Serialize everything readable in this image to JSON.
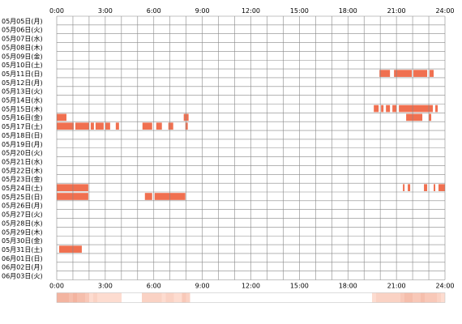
{
  "chart_data": {
    "type": "heatmap",
    "x_ticks": [
      "0:00",
      "3:00",
      "6:00",
      "9:00",
      "12:00",
      "15:00",
      "18:00",
      "21:00",
      "24:00"
    ],
    "x_range_hours": [
      0,
      24
    ],
    "grid": true,
    "colors": {
      "bar": "#f07050",
      "grid": "#888888",
      "density_light": "#ffe6dc",
      "density_dark": "#f3c0b0"
    },
    "rows": [
      {
        "label": "05月05日(月)",
        "segments": []
      },
      {
        "label": "05月06日(火)",
        "segments": []
      },
      {
        "label": "05月07日(水)",
        "segments": []
      },
      {
        "label": "05月08日(木)",
        "segments": []
      },
      {
        "label": "05月09日(金)",
        "segments": []
      },
      {
        "label": "05月10日(土)",
        "segments": []
      },
      {
        "label": "05月11日(日)",
        "segments": [
          [
            19.95,
            20.6
          ],
          [
            20.85,
            21.95
          ],
          [
            22.05,
            22.9
          ],
          [
            23.05,
            23.3
          ]
        ]
      },
      {
        "label": "05月12日(月)",
        "segments": []
      },
      {
        "label": "05月13日(火)",
        "segments": []
      },
      {
        "label": "05月14日(水)",
        "segments": []
      },
      {
        "label": "05月15日(木)",
        "segments": [
          [
            19.6,
            19.9
          ],
          [
            20.05,
            20.2
          ],
          [
            20.35,
            20.6
          ],
          [
            20.75,
            21.0
          ],
          [
            21.15,
            23.25
          ],
          [
            23.4,
            23.55
          ]
        ]
      },
      {
        "label": "05月16日(金)",
        "segments": [
          [
            0,
            0.6
          ],
          [
            7.85,
            8.15
          ],
          [
            21.6,
            22.6
          ],
          [
            23.0,
            23.15
          ]
        ]
      },
      {
        "label": "05月17日(土)",
        "segments": [
          [
            0,
            1.05
          ],
          [
            1.15,
            2.0
          ],
          [
            2.1,
            2.3
          ],
          [
            2.4,
            2.9
          ],
          [
            3.0,
            3.3
          ],
          [
            3.65,
            3.85
          ],
          [
            5.3,
            5.9
          ],
          [
            6.15,
            6.5
          ],
          [
            6.9,
            7.2
          ],
          [
            7.95,
            8.1
          ]
        ]
      },
      {
        "label": "05月18日(日)",
        "segments": []
      },
      {
        "label": "05月19日(月)",
        "segments": []
      },
      {
        "label": "05月20日(火)",
        "segments": []
      },
      {
        "label": "05月21日(水)",
        "segments": []
      },
      {
        "label": "05月22日(木)",
        "segments": []
      },
      {
        "label": "05月23日(金)",
        "segments": []
      },
      {
        "label": "05月24日(土)",
        "segments": [
          [
            0,
            1.95
          ],
          [
            21.4,
            21.5
          ],
          [
            21.7,
            21.85
          ],
          [
            22.7,
            22.9
          ],
          [
            23.3,
            23.4
          ],
          [
            23.6,
            24
          ]
        ]
      },
      {
        "label": "05月25日(日)",
        "segments": [
          [
            0,
            1.95
          ],
          [
            5.45,
            5.9
          ],
          [
            6.05,
            7.95
          ]
        ]
      },
      {
        "label": "05月26日(月)",
        "segments": []
      },
      {
        "label": "05月27日(火)",
        "segments": []
      },
      {
        "label": "05月28日(水)",
        "segments": []
      },
      {
        "label": "05月29日(木)",
        "segments": []
      },
      {
        "label": "05月30日(金)",
        "segments": []
      },
      {
        "label": "05月31日(土)",
        "segments": [
          [
            0.15,
            1.55
          ]
        ]
      },
      {
        "label": "06月01日(日)",
        "segments": []
      },
      {
        "label": "06月02日(月)",
        "segments": []
      },
      {
        "label": "06月03日(火)",
        "segments": []
      }
    ]
  }
}
